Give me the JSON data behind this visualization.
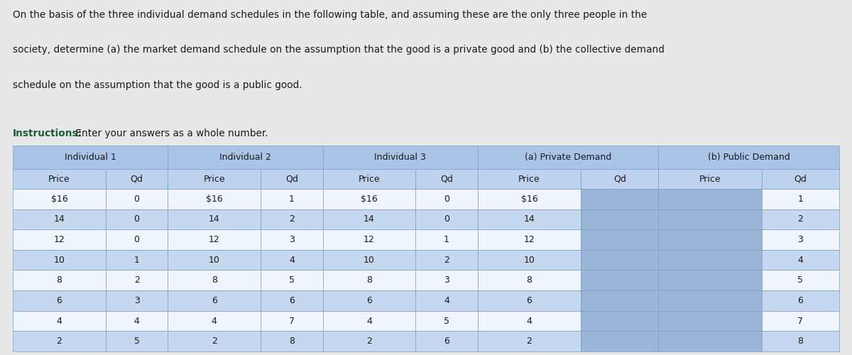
{
  "paragraph_line1": "On the basis of the three individual demand schedules in the following table, and assuming these are the only three people in the",
  "paragraph_line2": "society, determine (a) the market demand schedule on the assumption that the good is a private good and (b) the collective demand",
  "paragraph_line3": "schedule on the assumption that the good is a public good.",
  "instructions_bold": "Instructions:",
  "instructions_rest": " Enter your answers as a whole number.",
  "col_groups": [
    {
      "label": "Individual 1",
      "cols": [
        "Price",
        "Qd"
      ]
    },
    {
      "label": "Individual 2",
      "cols": [
        "Price",
        "Qd"
      ]
    },
    {
      "label": "Individual 3",
      "cols": [
        "Price",
        "Qd"
      ]
    },
    {
      "label": "(a) Private Demand",
      "cols": [
        "Price",
        "Qd"
      ]
    },
    {
      "label": "(b) Public Demand",
      "cols": [
        "Price",
        "Qd"
      ]
    }
  ],
  "rows": [
    [
      "$16",
      "0",
      "$16",
      "1",
      "$16",
      "0",
      "$16",
      "",
      "",
      "1"
    ],
    [
      "14",
      "0",
      "14",
      "2",
      "14",
      "0",
      "14",
      "",
      "",
      "2"
    ],
    [
      "12",
      "0",
      "12",
      "3",
      "12",
      "1",
      "12",
      "",
      "",
      "3"
    ],
    [
      "10",
      "1",
      "10",
      "4",
      "10",
      "2",
      "10",
      "",
      "",
      "4"
    ],
    [
      "8",
      "2",
      "8",
      "5",
      "8",
      "3",
      "8",
      "",
      "",
      "5"
    ],
    [
      "6",
      "3",
      "6",
      "6",
      "6",
      "4",
      "6",
      "",
      "",
      "6"
    ],
    [
      "4",
      "4",
      "4",
      "7",
      "4",
      "5",
      "4",
      "",
      "",
      "7"
    ],
    [
      "2",
      "5",
      "2",
      "8",
      "2",
      "6",
      "2",
      "",
      "",
      "8"
    ]
  ],
  "header_bg": "#aac4e8",
  "subheader_bg": "#bdd2ee",
  "row_bg_white": "#f0f4fb",
  "row_bg_blue": "#c5d8f0",
  "blank_cell_bg": "#9ab5d8",
  "border_color": "#7a9ec5",
  "text_color": "#1a1a1a",
  "para_color": "#1a1a1a",
  "inst_bold_color": "#1a5e3a",
  "inst_rest_color": "#1a1a1a",
  "background_color": "#e8e8e8",
  "table_bg": "#ffffff"
}
